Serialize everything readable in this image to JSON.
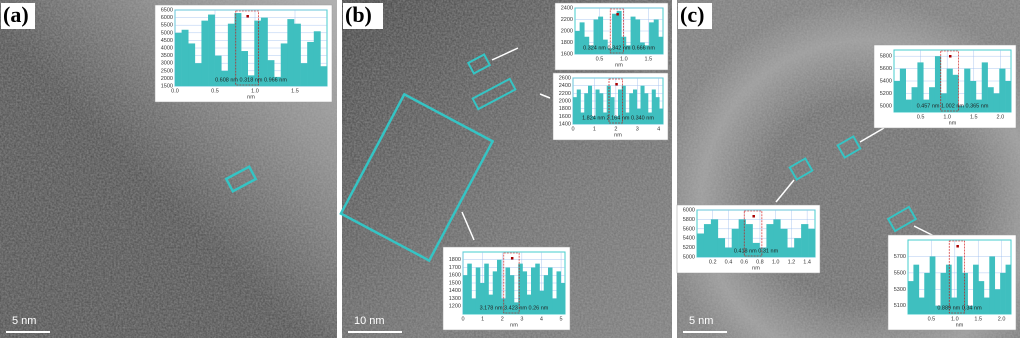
{
  "panels": [
    {
      "label": "(a)",
      "scale_bar": "5 nm",
      "insets": [
        {
          "ylim": [
            1500,
            6500
          ],
          "yticks": [
            1500,
            2000,
            2500,
            3000,
            3500,
            4000,
            4500,
            5000,
            5500,
            6000,
            6500
          ],
          "xticks": [
            {
              "value": 0,
              "label": "0.0"
            },
            {
              "value": 0.5,
              "label": "0.5"
            },
            {
              "value": 1,
              "label": "1.0"
            },
            {
              "value": 1.5,
              "label": "1.5"
            }
          ],
          "xlim": [
            0,
            1.9
          ],
          "x_label": "nm",
          "annotation": "0.608 nm  0.318 nm  0.966 nm",
          "values": [
            5000,
            5200,
            4300,
            3000,
            5800,
            6200,
            3500,
            2500,
            5600,
            6300,
            3800,
            2200,
            5800,
            6000,
            3200,
            2100,
            4300,
            5900,
            5600,
            3000,
            4400,
            5100,
            2800
          ]
        }
      ]
    },
    {
      "label": "(b)",
      "scale_bar": "10 nm",
      "insets": [
        {
          "ylim": [
            1600,
            2400
          ],
          "yticks": [
            1600,
            1800,
            2000,
            2200,
            2400
          ],
          "xticks": [
            {
              "value": 0.5,
              "label": "0.5"
            },
            {
              "value": 1,
              "label": "1.0"
            },
            {
              "value": 1.5,
              "label": "1.5"
            }
          ],
          "xlim": [
            0,
            1.8
          ],
          "x_label": "nm",
          "annotation": "0.324 nm  0.342 nm  0.666 nm",
          "values": [
            2000,
            2150,
            1900,
            1750,
            2200,
            2250,
            1850,
            1700,
            2300,
            2350,
            1900,
            1750,
            2250,
            2200,
            1800,
            1750,
            2150,
            2200,
            1900
          ]
        },
        {
          "ylim": [
            1400,
            2600
          ],
          "yticks": [
            1400,
            1600,
            1800,
            2000,
            2200,
            2400,
            2600
          ],
          "xticks": [
            0,
            1,
            2,
            3,
            4
          ],
          "xlim": [
            0,
            4.2
          ],
          "x_label": "nm",
          "annotation": "1.824 nm  2.164 nm  0.340 nm",
          "values": [
            2100,
            2300,
            1700,
            2200,
            2400,
            1600,
            2300,
            2200,
            1700,
            2400,
            2100,
            1600,
            2300,
            2400,
            1700,
            2200,
            2300,
            1800,
            2400,
            2200,
            1700,
            2300,
            2100,
            1800
          ]
        },
        {
          "ylim": [
            1100,
            1900
          ],
          "yticks": [
            1200,
            1300,
            1400,
            1500,
            1600,
            1700,
            1800
          ],
          "xticks": [
            0,
            1,
            2,
            3,
            4,
            5
          ],
          "xlim": [
            0,
            5.2
          ],
          "x_label": "nm",
          "annotation": "3.178 nm  3.423 nm  0.26 nm",
          "values": [
            1600,
            1750,
            1300,
            1700,
            1500,
            1750,
            1350,
            1650,
            1800,
            1300,
            1700,
            1600,
            1250,
            1750,
            1650,
            1350,
            1700,
            1750,
            1400,
            1600,
            1700,
            1300,
            1650,
            1500
          ]
        }
      ]
    },
    {
      "label": "(c)",
      "scale_bar": "5 nm",
      "insets": [
        {
          "ylim": [
            4900,
            5900
          ],
          "yticks": [
            5000,
            5200,
            5400,
            5600,
            5800
          ],
          "xticks": [
            {
              "value": 0.5,
              "label": "0.5"
            },
            {
              "value": 1,
              "label": "1.0"
            },
            {
              "value": 1.5,
              "label": "1.5"
            },
            {
              "value": 2,
              "label": "2.0"
            }
          ],
          "xlim": [
            0,
            2.2
          ],
          "x_label": "nm",
          "annotation": "0.457 nm  1.002 nm  0.365 nm",
          "values": [
            5400,
            5600,
            5100,
            5300,
            5700,
            5100,
            5300,
            5800,
            5200,
            5600,
            5500,
            5000,
            5600,
            5400,
            5100,
            5700,
            5300,
            5200,
            5600,
            5400
          ]
        },
        {
          "ylim": [
            5000,
            6000
          ],
          "yticks": [
            5000,
            5200,
            5400,
            5600,
            5800,
            6000
          ],
          "xticks": [
            {
              "value": 0.2,
              "label": "0.2"
            },
            {
              "value": 0.4,
              "label": "0.4"
            },
            {
              "value": 0.6,
              "label": "0.6"
            },
            {
              "value": 0.8,
              "label": "0.8"
            },
            {
              "value": 1,
              "label": "1.0"
            },
            {
              "value": 1.2,
              "label": "1.2"
            },
            {
              "value": 1.4,
              "label": "1.4"
            }
          ],
          "xlim": [
            0,
            1.5
          ],
          "x_label": "nm",
          "annotation": "0.418 nm  0.31 nm",
          "values": [
            5500,
            5700,
            5800,
            5400,
            5200,
            5600,
            5800,
            5700,
            5300,
            5200,
            5700,
            5800,
            5600,
            5200,
            5400,
            5700,
            5600
          ]
        },
        {
          "ylim": [
            5000,
            5900
          ],
          "yticks": [
            5100,
            5300,
            5500,
            5700
          ],
          "xticks": [
            {
              "value": 0.5,
              "label": "0.5"
            },
            {
              "value": 1,
              "label": "1.0"
            },
            {
              "value": 1.5,
              "label": "1.5"
            },
            {
              "value": 2,
              "label": "2.0"
            }
          ],
          "xlim": [
            0,
            2.2
          ],
          "x_label": "nm",
          "annotation": "0.889 nm  0.34 nm",
          "values": [
            5400,
            5600,
            5200,
            5500,
            5700,
            5100,
            5500,
            5600,
            5200,
            5700,
            5500,
            5100,
            5600,
            5400,
            5200,
            5700,
            5300,
            5500,
            5600
          ]
        }
      ]
    }
  ]
}
